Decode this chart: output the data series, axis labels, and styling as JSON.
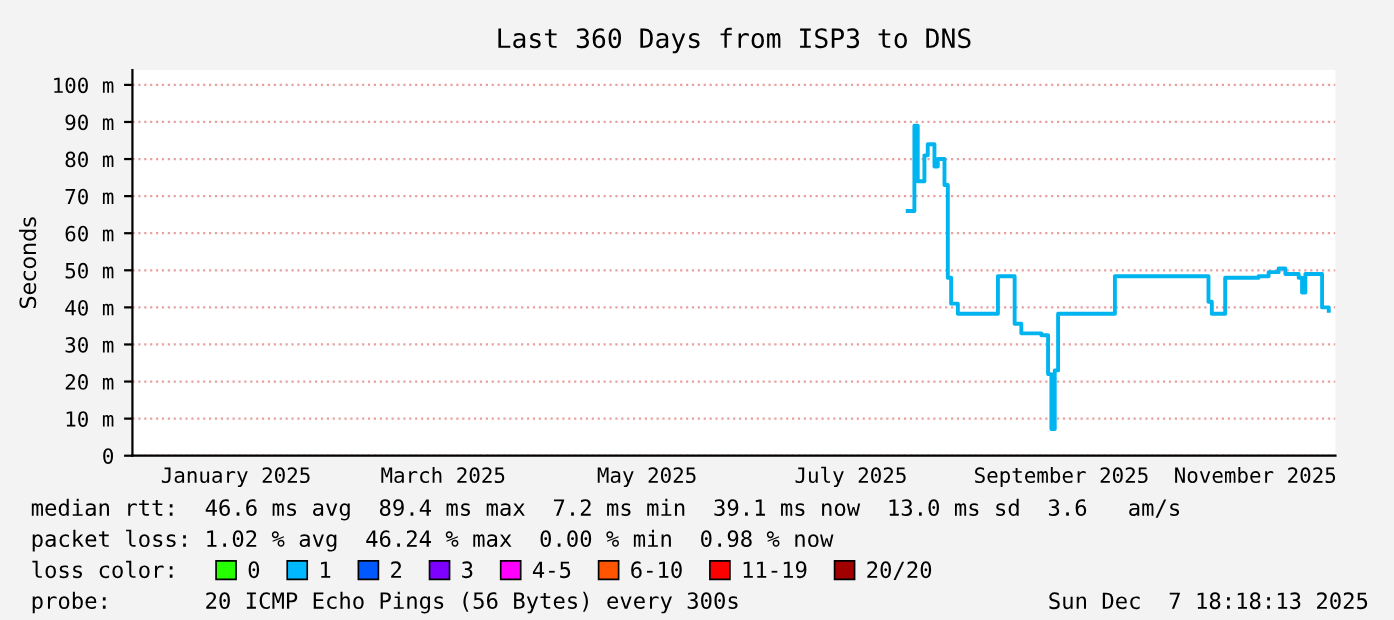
{
  "chart_data": {
    "type": "step",
    "title": "Last 360 Days from ISP3 to DNS",
    "ylabel": "Seconds",
    "x": [
      "2025-08-01",
      "2025-08-03",
      "2025-08-04",
      "2025-08-06",
      "2025-08-07",
      "2025-08-09",
      "2025-08-10",
      "2025-08-12",
      "2025-08-13",
      "2025-08-14",
      "2025-08-16",
      "2025-08-27",
      "2025-08-28",
      "2025-09-01",
      "2025-09-02",
      "2025-09-04",
      "2025-09-10",
      "2025-09-12",
      "2025-09-13",
      "2025-09-14",
      "2025-09-15",
      "2025-10-01",
      "2025-10-02",
      "2025-10-29",
      "2025-10-30",
      "2025-10-31",
      "2025-11-03",
      "2025-11-04",
      "2025-11-14",
      "2025-11-17",
      "2025-11-20",
      "2025-11-22",
      "2025-11-26",
      "2025-11-27",
      "2025-11-28",
      "2025-12-02",
      "2025-12-03",
      "2025-12-05"
    ],
    "series": [
      {
        "color": "#00b4f0",
        "values": [
          66,
          89,
          74,
          81,
          84,
          78,
          80,
          73,
          48,
          41,
          38.3,
          38.3,
          48.4,
          48.4,
          35.6,
          33,
          32.5,
          22,
          7.2,
          23,
          38.3,
          38.3,
          48.4,
          48.4,
          41.5,
          38.3,
          38.3,
          48,
          48.4,
          49.5,
          50.5,
          49,
          48,
          44,
          49,
          49,
          40,
          39.1
        ]
      },
      {
        "name": "0",
        "color": "#26ff00",
        "values": [
          null,
          null,
          null,
          null,
          null,
          null,
          null,
          null,
          null,
          null,
          null,
          null,
          null,
          null,
          null,
          null,
          null,
          null,
          null,
          null,
          null,
          null,
          null,
          null,
          null,
          null,
          null,
          null,
          null,
          null,
          null,
          null,
          null,
          null,
          null,
          null,
          null,
          null
        ]
      },
      {
        "name": "1",
        "color": "#00b8ff",
        "values": [
          null,
          null,
          null,
          null,
          null,
          null,
          null,
          null,
          null,
          null,
          null,
          null,
          null,
          null,
          null,
          null,
          null,
          null,
          null,
          null,
          null,
          null,
          null,
          null,
          null,
          null,
          null,
          null,
          null,
          null,
          null,
          null,
          null,
          null,
          null,
          null,
          null,
          null
        ]
      },
      {
        "name": "2",
        "color": "#0059ff",
        "values": [
          null,
          null,
          null,
          null,
          null,
          null,
          null,
          null,
          null,
          null,
          null,
          null,
          null,
          null,
          null,
          null,
          null,
          null,
          null,
          null,
          null,
          null,
          null,
          null,
          null,
          null,
          null,
          null,
          null,
          null,
          null,
          null,
          null,
          null,
          null,
          null,
          null,
          null
        ]
      },
      {
        "name": "3",
        "color": "#7e00ff",
        "values": [
          null,
          null,
          null,
          null,
          null,
          null,
          null,
          null,
          null,
          null,
          null,
          null,
          null,
          null,
          null,
          null,
          null,
          null,
          null,
          null,
          null,
          null,
          null,
          null,
          null,
          null,
          null,
          null,
          null,
          null,
          null,
          null,
          null,
          null,
          null,
          null,
          null,
          null
        ]
      },
      {
        "name": "4-5",
        "color": "#ff00ff",
        "values": [
          null,
          null,
          null,
          null,
          null,
          null,
          null,
          null,
          null,
          null,
          null,
          null,
          null,
          null,
          null,
          null,
          null,
          null,
          null,
          null,
          null,
          null,
          null,
          null,
          null,
          null,
          null,
          null,
          null,
          null,
          null,
          null,
          null,
          null,
          null,
          null,
          null,
          null
        ]
      },
      {
        "name": "6-10",
        "color": "#ff5500",
        "values": [
          null,
          null,
          null,
          null,
          null,
          null,
          null,
          null,
          null,
          null,
          null,
          null,
          null,
          null,
          null,
          null,
          null,
          null,
          null,
          null,
          null,
          null,
          null,
          null,
          null,
          null,
          null,
          null,
          null,
          null,
          null,
          null,
          null,
          null,
          null,
          null,
          null,
          null
        ]
      },
      {
        "name": "11-19",
        "color": "#ff0000",
        "values": [
          null,
          null,
          null,
          null,
          null,
          null,
          null,
          null,
          null,
          null,
          null,
          null,
          null,
          null,
          null,
          null,
          null,
          null,
          null,
          null,
          null,
          null,
          null,
          null,
          null,
          null,
          null,
          null,
          null,
          null,
          null,
          null,
          null,
          null,
          null,
          null,
          null,
          null
        ]
      },
      {
        "name": "20/20",
        "color": "#a10000",
        "values": [
          null,
          null,
          null,
          null,
          null,
          null,
          null,
          null,
          null,
          null,
          null,
          null,
          null,
          null,
          null,
          null,
          null,
          null,
          null,
          null,
          null,
          null,
          null,
          null,
          null,
          null,
          null,
          null,
          null,
          null,
          null,
          null,
          null,
          null,
          null,
          null,
          null,
          null
        ]
      }
    ],
    "legend_title": "loss color:",
    "legend": "bottom",
    "xlim": [
      "2024-12-12",
      "2025-12-07"
    ],
    "xticks": [
      {
        "value": "2025-01-12",
        "label": "January 2025"
      },
      {
        "value": "2025-03-15",
        "label": "March 2025"
      },
      {
        "value": "2025-05-15",
        "label": "May 2025"
      },
      {
        "value": "2025-07-15",
        "label": "July 2025"
      },
      {
        "value": "2025-09-16",
        "label": "September 2025"
      },
      {
        "value": "2025-11-13",
        "label": "November 2025"
      }
    ],
    "ylim": [
      0,
      104
    ],
    "yticks": [
      0,
      {
        "value": 10,
        "label": "10 m"
      },
      {
        "value": 20,
        "label": "20 m"
      },
      {
        "value": 30,
        "label": "30 m"
      },
      {
        "value": 40,
        "label": "40 m"
      },
      {
        "value": 50,
        "label": "50 m"
      },
      {
        "value": 60,
        "label": "60 m"
      },
      {
        "value": 70,
        "label": "70 m"
      },
      {
        "value": 80,
        "label": "80 m"
      },
      {
        "value": 90,
        "label": "90 m"
      },
      {
        "value": 100,
        "label": "100 m"
      }
    ],
    "grid": "y",
    "annotations": [
      "median rtt:  46.6 ms avg  89.4 ms max  7.2 ms min  39.1 ms now  13.0 ms sd  3.6   am/s",
      "packet loss: 1.02 % avg  46.24 % max  0.00 % min  0.98 % now",
      "probe:       20 ICMP Echo Pings (56 Bytes) every 300s",
      "Sun Dec  7 18:18:13 2025"
    ]
  }
}
